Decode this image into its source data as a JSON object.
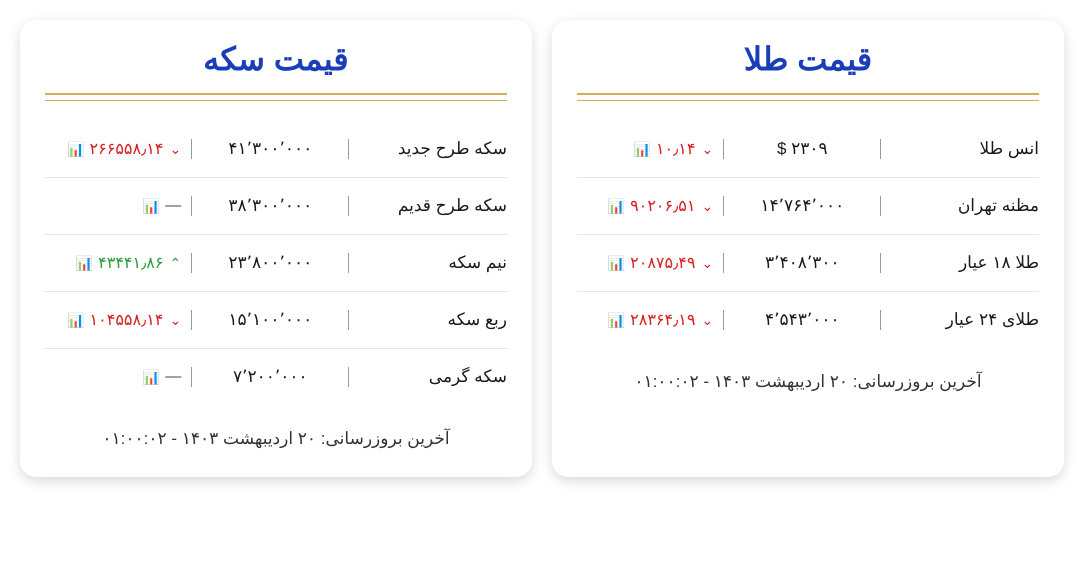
{
  "gold_card": {
    "title": "قیمت طلا",
    "rows": [
      {
        "name": "انس طلا",
        "price": "۲۳۰۹ $",
        "change": "۱۰٫۱۴",
        "direction": "down"
      },
      {
        "name": "مظنه تهران",
        "price": "۱۴٬۷۶۴٬۰۰۰",
        "change": "۹۰۲۰۶٫۵۱",
        "direction": "down"
      },
      {
        "name": "طلا ۱۸ عیار",
        "price": "۳٬۴۰۸٬۳۰۰",
        "change": "۲۰۸۷۵٫۴۹",
        "direction": "down"
      },
      {
        "name": "طلای ۲۴ عیار",
        "price": "۴٬۵۴۳٬۰۰۰",
        "change": "۲۸۳۶۴٫۱۹",
        "direction": "down"
      }
    ],
    "footer": "آخرین بروزرسانی: ۲۰ اردیبهشت ۱۴۰۳ - ۰۱:۰۰:۰۲"
  },
  "coin_card": {
    "title": "قیمت سکه",
    "rows": [
      {
        "name": "سکه طرح جدید",
        "price": "۴۱٬۳۰۰٬۰۰۰",
        "change": "۲۶۶۵۵۸٫۱۴",
        "direction": "down"
      },
      {
        "name": "سکه طرح قدیم",
        "price": "۳۸٬۳۰۰٬۰۰۰",
        "change": "—",
        "direction": "neutral"
      },
      {
        "name": "نیم سکه",
        "price": "۲۳٬۸۰۰٬۰۰۰",
        "change": "۴۳۴۴۱٫۸۶",
        "direction": "up"
      },
      {
        "name": "ربع سکه",
        "price": "۱۵٬۱۰۰٬۰۰۰",
        "change": "۱۰۴۵۵۸٫۱۴",
        "direction": "down"
      },
      {
        "name": "سکه گرمی",
        "price": "۷٬۲۰۰٬۰۰۰",
        "change": "—",
        "direction": "neutral"
      }
    ],
    "footer": "آخرین بروزرسانی: ۲۰ اردیبهشت ۱۴۰۳ - ۰۱:۰۰:۰۲"
  },
  "colors": {
    "title": "#1a3db8",
    "divider": "#d4af5a",
    "down": "#d62020",
    "up": "#2a9d3a"
  }
}
